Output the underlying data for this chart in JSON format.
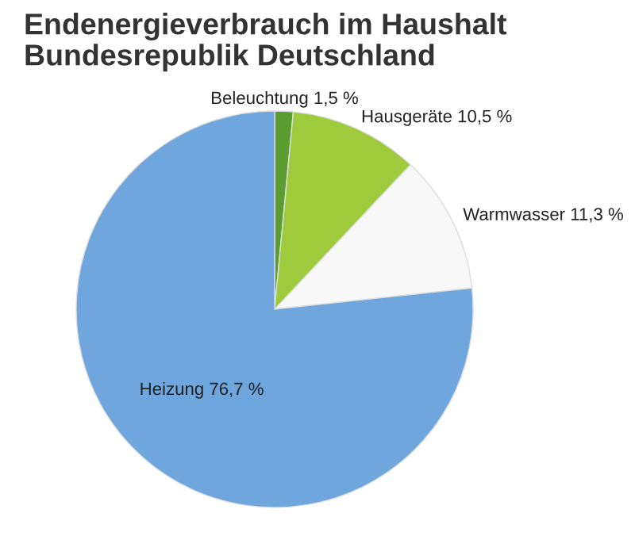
{
  "chart_data": {
    "type": "pie",
    "title": "Endenergieverbrauch im Haushalt\nBundesrepublik Deutschland",
    "categories": [
      "Beleuchtung",
      "Hausgeräte",
      "Warmwasser",
      "Heizung"
    ],
    "values": [
      1.5,
      10.5,
      11.3,
      76.7
    ],
    "value_labels": [
      "1,5 %",
      "10,5 %",
      "11,3 %",
      "76,7 %"
    ],
    "colors": [
      "#5a9e32",
      "#9dcb3c",
      "#f8f8f8",
      "#6fa6dd"
    ],
    "legend": false
  }
}
